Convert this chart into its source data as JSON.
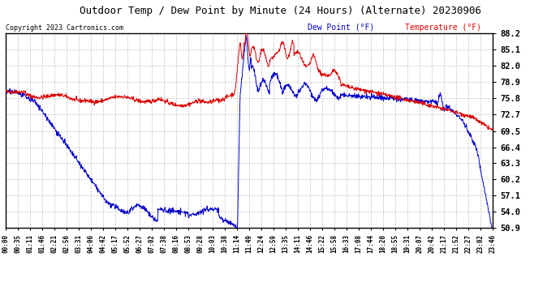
{
  "title": "Outdoor Temp / Dew Point by Minute (24 Hours) (Alternate) 20230906",
  "copyright": "Copyright 2023 Cartronics.com",
  "legend_dew": "Dew Point (°F)",
  "legend_temp": "Temperature (°F)",
  "y_min": 50.9,
  "y_max": 88.2,
  "y_ticks": [
    50.9,
    54.0,
    57.1,
    60.2,
    63.3,
    66.4,
    69.5,
    72.7,
    75.8,
    78.9,
    82.0,
    85.1,
    88.2
  ],
  "x_tick_labels": [
    "00:00",
    "00:35",
    "01:11",
    "01:46",
    "02:21",
    "02:56",
    "03:31",
    "04:06",
    "04:42",
    "05:17",
    "05:52",
    "06:27",
    "07:02",
    "07:38",
    "08:16",
    "08:53",
    "09:28",
    "10:03",
    "10:38",
    "11:14",
    "11:49",
    "12:24",
    "12:59",
    "13:35",
    "14:11",
    "14:46",
    "15:22",
    "15:58",
    "16:33",
    "17:08",
    "17:44",
    "18:20",
    "18:55",
    "19:31",
    "20:07",
    "20:42",
    "21:17",
    "21:52",
    "22:27",
    "23:02",
    "23:46"
  ],
  "bg_color": "#ffffff",
  "grid_color": "#aaaaaa",
  "temp_color": "#dd0000",
  "dew_color": "#0000cc",
  "title_color": "#000000",
  "tick_color": "#000000",
  "copyright_color": "#000000",
  "legend_dew_color": "#0000cc",
  "legend_temp_color": "#dd0000"
}
